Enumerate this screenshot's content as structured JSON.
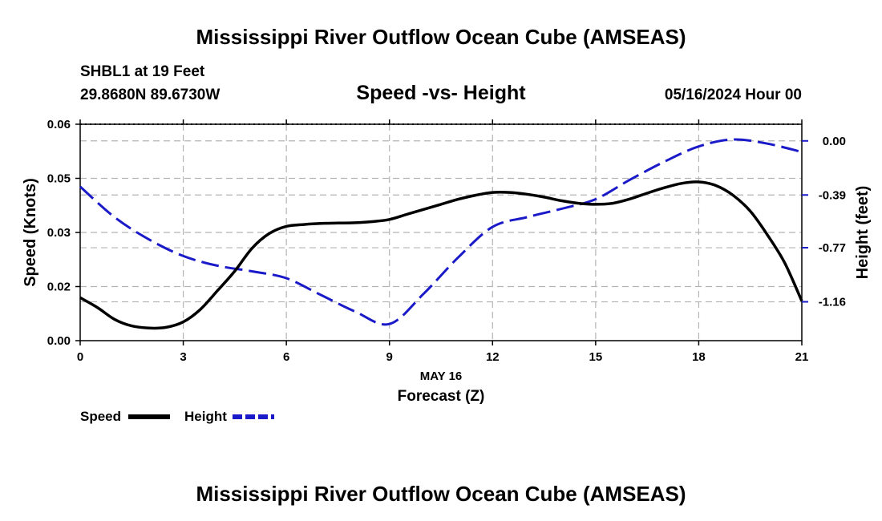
{
  "header": {
    "title": "Mississippi River Outflow Ocean Cube (AMSEAS)",
    "station": "SHBL1 at 19 Feet",
    "location": "29.8680N  89.6730W",
    "subtitle": "Speed -vs- Height",
    "datetime": "05/16/2024 Hour 00"
  },
  "footer": {
    "title": "Mississippi River Outflow Ocean Cube (AMSEAS)"
  },
  "colors": {
    "speed": "#000000",
    "height": "#1a1ac8",
    "grid": "#b4b4b4"
  },
  "chart_data": {
    "type": "line",
    "title": "Speed -vs- Height",
    "xlabel": "Forecast (Z)",
    "xlabel_date": "MAY 16",
    "ylabel": "Speed (Knots)",
    "y2label": "Height (feet)",
    "xlim": [
      0,
      21
    ],
    "ylim": [
      0,
      0.06
    ],
    "y2lim": [
      -1.44,
      0.12
    ],
    "x_ticks": [
      "0",
      "3",
      "6",
      "9",
      "12",
      "15",
      "18",
      "21"
    ],
    "x_tick_values": [
      0,
      3,
      6,
      9,
      12,
      15,
      18,
      21
    ],
    "y_ticks": [
      "0.00",
      "0.02",
      "0.03",
      "0.05",
      "0.06"
    ],
    "y_tick_values": [
      0.0,
      0.015,
      0.03,
      0.045,
      0.06
    ],
    "y2_ticks": [
      "0.00",
      "-0.39",
      "-0.77",
      "-1.16"
    ],
    "y2_tick_values": [
      0.0,
      -0.39,
      -0.77,
      -1.16
    ],
    "grid": true,
    "series": [
      {
        "name": "Speed",
        "axis": "left",
        "style": "solid",
        "x": [
          0,
          0.5,
          1,
          1.5,
          2,
          2.5,
          3,
          3.5,
          4,
          4.5,
          5,
          5.5,
          6,
          6.5,
          7,
          7.5,
          8,
          8.5,
          9,
          9.5,
          10,
          10.5,
          11,
          11.5,
          12,
          12.5,
          13,
          13.5,
          14,
          14.5,
          15,
          15.5,
          16,
          16.5,
          17,
          17.5,
          18,
          18.5,
          19,
          19.5,
          20,
          20.5,
          21
        ],
        "values": [
          0.0119,
          0.0092,
          0.0059,
          0.0041,
          0.0035,
          0.0037,
          0.0052,
          0.0087,
          0.0139,
          0.0193,
          0.0256,
          0.0297,
          0.0317,
          0.0322,
          0.0325,
          0.0326,
          0.0327,
          0.033,
          0.0336,
          0.035,
          0.0364,
          0.0378,
          0.0392,
          0.0403,
          0.0411,
          0.0411,
          0.0406,
          0.0398,
          0.0388,
          0.0381,
          0.0378,
          0.0381,
          0.0393,
          0.0409,
          0.0424,
          0.0436,
          0.044,
          0.043,
          0.0403,
          0.0359,
          0.0293,
          0.0216,
          0.011
        ]
      },
      {
        "name": "Height",
        "axis": "right",
        "style": "dashed",
        "x": [
          0,
          1,
          2,
          3,
          4,
          5,
          6,
          7,
          8,
          9,
          10,
          11,
          12,
          13,
          14,
          15,
          16,
          17,
          18,
          19,
          20,
          21
        ],
        "values": [
          -0.33,
          -0.55,
          -0.71,
          -0.83,
          -0.9,
          -0.94,
          -0.99,
          -1.11,
          -1.23,
          -1.32,
          -1.1,
          -0.84,
          -0.62,
          -0.55,
          -0.49,
          -0.42,
          -0.28,
          -0.15,
          -0.04,
          0.01,
          -0.02,
          -0.08
        ]
      }
    ],
    "legend": [
      {
        "label": "Speed",
        "style": "solid"
      },
      {
        "label": "Height",
        "style": "dashed"
      }
    ]
  }
}
